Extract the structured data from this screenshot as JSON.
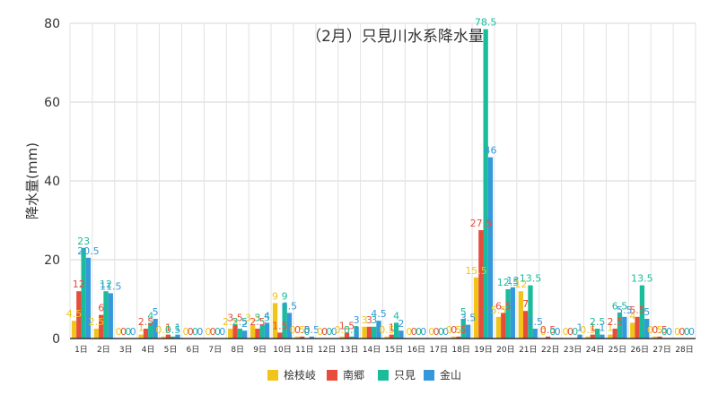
{
  "chart_data": {
    "type": "bar",
    "title": "（2月）只見川水系降水量",
    "ylabel": "降水量(mm)",
    "xlabel": "",
    "ylim": [
      0,
      80
    ],
    "yticks": [
      0,
      20,
      40,
      60,
      80
    ],
    "grid": true,
    "legend_position": "bottom",
    "categories": [
      "1日",
      "2日",
      "3日",
      "4日",
      "5日",
      "6日",
      "7日",
      "8日",
      "9日",
      "10日",
      "11日",
      "12日",
      "13日",
      "14日",
      "15日",
      "16日",
      "17日",
      "18日",
      "19日",
      "20日",
      "21日",
      "22日",
      "23日",
      "24日",
      "25日",
      "26日",
      "27日",
      "28日"
    ],
    "series": [
      {
        "name": "桧枝岐",
        "color": "#f0c419",
        "values": [
          4.5,
          2.5,
          0,
          1,
          0.5,
          0,
          0,
          2.5,
          3.5,
          9,
          0.5,
          0,
          0.5,
          3,
          0.5,
          0,
          0,
          0.5,
          15.5,
          5.5,
          12,
          0,
          0,
          0.5,
          1,
          4,
          0.5,
          0
        ]
      },
      {
        "name": "南郷",
        "color": "#e74c3c",
        "values": [
          12,
          6,
          0,
          2.5,
          1,
          0,
          0,
          3.5,
          2.5,
          1.5,
          0.5,
          0,
          1.5,
          3,
          1,
          0,
          0,
          0.5,
          27.5,
          6.5,
          7,
          0.5,
          0,
          1,
          2.5,
          5.5,
          0.5,
          0
        ]
      },
      {
        "name": "只見",
        "color": "#1abc9c",
        "values": [
          23,
          12,
          0,
          4,
          0.5,
          0,
          0,
          2.5,
          3.5,
          9,
          0,
          0,
          0.5,
          3,
          4,
          0,
          0,
          5,
          78.5,
          12.5,
          13.5,
          0,
          0,
          2.5,
          6.5,
          13.5,
          0,
          0
        ]
      },
      {
        "name": "金山",
        "color": "#3498db",
        "values": [
          20.5,
          11.5,
          0,
          5,
          1,
          0,
          0,
          2,
          4,
          6.5,
          0.5,
          0,
          3,
          4.5,
          2,
          0,
          0,
          3.5,
          46,
          13,
          2.5,
          0,
          1,
          1,
          5.5,
          5,
          0,
          0
        ]
      }
    ]
  }
}
